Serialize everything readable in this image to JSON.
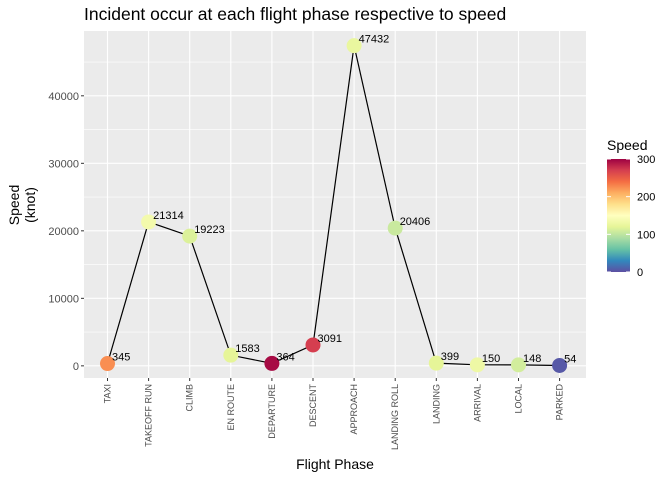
{
  "chart_data": {
    "type": "line",
    "title": "Incident occur at each flight phase respective to speed",
    "xlabel": "Flight Phase",
    "ylabel_line1": "Speed",
    "ylabel_line2": "(knot)",
    "categories": [
      "TAXI",
      "TAKEOFF RUN",
      "CLIMB",
      "EN ROUTE",
      "DEPARTURE",
      "DESCENT",
      "APPROACH",
      "LANDING ROLL",
      "LANDING",
      "ARRIVAL",
      "LOCAL",
      "PARKED"
    ],
    "values": [
      345,
      21314,
      19223,
      1583,
      364,
      3091,
      47432,
      20406,
      399,
      150,
      148,
      54
    ],
    "point_labels": [
      "345",
      "21314",
      "19223",
      "1583",
      "364",
      "3091",
      "47432",
      "20406",
      "399",
      "150",
      "148",
      "54"
    ],
    "color_values": [
      225,
      135,
      115,
      120,
      295,
      270,
      125,
      105,
      120,
      130,
      110,
      5
    ],
    "ylim": [
      -1800,
      49600
    ],
    "yticks": [
      0,
      10000,
      20000,
      30000,
      40000
    ],
    "ytick_labels": [
      "0",
      "10000",
      "20000",
      "30000",
      "40000"
    ],
    "grid": true,
    "legend": {
      "title": "Speed",
      "placement": "right",
      "range": [
        0,
        300
      ],
      "ticks": [
        0,
        100,
        200,
        300
      ],
      "tick_labels": [
        "0",
        "100",
        "200",
        "300"
      ],
      "palette": [
        "#5E4FA2",
        "#3288BD",
        "#66C2A5",
        "#ABDDA4",
        "#E6F598",
        "#FFFFBF",
        "#FEE08B",
        "#FDAE61",
        "#F46D43",
        "#D53E4F",
        "#9E0142"
      ]
    },
    "colors": {
      "panel": "#EBEBEB",
      "grid_major": "#FFFFFF",
      "line": "#000000",
      "tick": "#333333"
    }
  }
}
